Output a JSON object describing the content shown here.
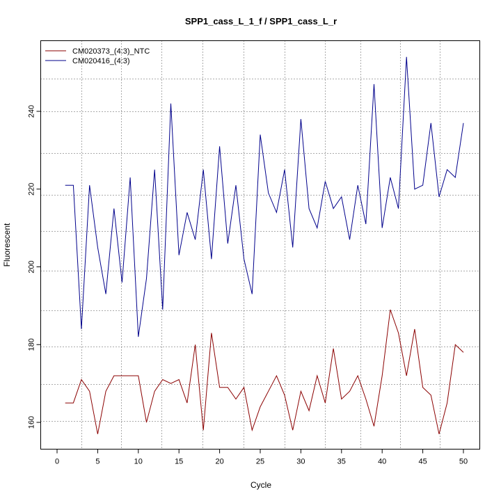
{
  "chart_data": {
    "type": "line",
    "title": "SPP1_cass_L_1_f / SPP1_cass_L_r",
    "xlabel": "Cycle",
    "ylabel": "Fluorescent",
    "xlim": [
      -2,
      52
    ],
    "ylim": [
      152.5,
      257
    ],
    "xticks": [
      0,
      5,
      10,
      15,
      20,
      25,
      30,
      35,
      40,
      45,
      50
    ],
    "yticks": [
      160,
      180,
      200,
      220,
      240
    ],
    "grid": true,
    "legend_position": "top-left",
    "vgrid": [
      3,
      7.9,
      12.85,
      17.9,
      22.95,
      28,
      32.95,
      37.3,
      42.25,
      47.05
    ],
    "hgrid": [
      160.3,
      169.8,
      179.5,
      188.9,
      199.0,
      209.2,
      218.6,
      229.3,
      240,
      248.4
    ],
    "series": [
      {
        "name": "CM020373_(4:3)_NTC",
        "color": "#8b0000",
        "x": [
          1,
          2,
          3,
          4,
          5,
          6,
          7,
          8,
          9,
          10,
          11,
          12,
          13,
          14,
          15,
          16,
          17,
          18,
          19,
          20,
          21,
          22,
          23,
          24,
          25,
          26,
          27,
          28,
          29,
          30,
          31,
          32,
          33,
          34,
          35,
          36,
          37,
          38,
          39,
          40,
          41,
          42,
          43,
          44,
          45,
          46,
          47,
          48,
          49,
          50
        ],
        "values": [
          165,
          165,
          171,
          168,
          157,
          168,
          172,
          172,
          172,
          172,
          160,
          168,
          171,
          170,
          171,
          165,
          180,
          158,
          183,
          169,
          169,
          166,
          169,
          158,
          164,
          168,
          172,
          167,
          158,
          168,
          163,
          172,
          165,
          179,
          166,
          168,
          172,
          166,
          159,
          172,
          189,
          183,
          172,
          184,
          169,
          167,
          157,
          165,
          180,
          178
        ]
      },
      {
        "name": "CM020416_(4:3)",
        "color": "#00008b",
        "x": [
          1,
          2,
          3,
          4,
          5,
          6,
          7,
          8,
          9,
          10,
          11,
          12,
          13,
          14,
          15,
          16,
          17,
          18,
          19,
          20,
          21,
          22,
          23,
          24,
          25,
          26,
          27,
          28,
          29,
          30,
          31,
          32,
          33,
          34,
          35,
          36,
          37,
          38,
          39,
          40,
          41,
          42,
          43,
          44,
          45,
          46,
          47,
          48,
          49,
          50
        ],
        "values": [
          221,
          221,
          184,
          221,
          205,
          193,
          215,
          196,
          223,
          182,
          197,
          225,
          189,
          242,
          203,
          214,
          207,
          225,
          202,
          231,
          206,
          221,
          202,
          193,
          234,
          219,
          214,
          225,
          205,
          238,
          215,
          210,
          222,
          215,
          218,
          207,
          221,
          211,
          247,
          210,
          223,
          215,
          254,
          220,
          221,
          237,
          218,
          225,
          223,
          237
        ]
      }
    ]
  }
}
